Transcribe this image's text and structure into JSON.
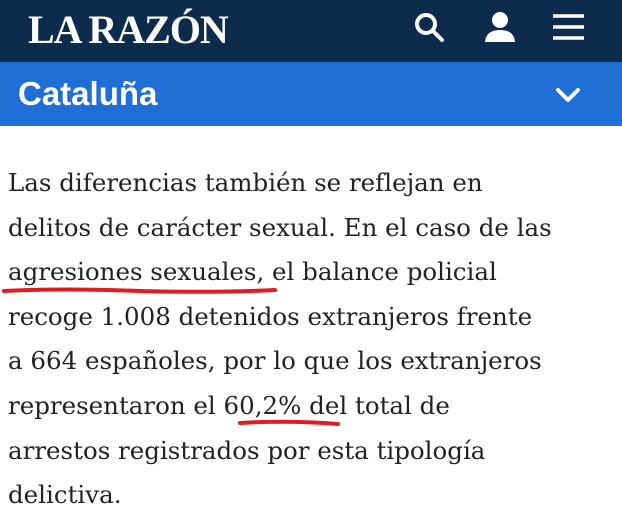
{
  "header": {
    "logo": "LA RAZÓN"
  },
  "section": {
    "title": "Cataluña"
  },
  "article": {
    "lines": [
      "Las diferencias también se reflejan en",
      "delitos de carácter sexual. En el caso de las",
      "agresiones sexuales, el balance policial",
      "recoge 1.008 detenidos extranjeros frente",
      "a 664 españoles, por lo que los extranjeros",
      "representaron el 60,2% del total de",
      "arrestos registrados por esta tipología",
      "delictiva."
    ]
  }
}
